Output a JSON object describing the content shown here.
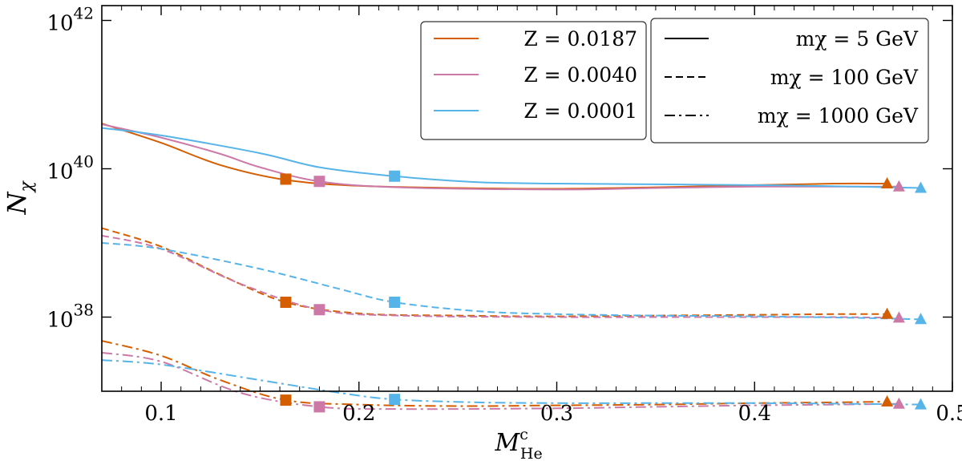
{
  "chart_data": {
    "type": "line",
    "title": "",
    "xlabel": {
      "main": "M",
      "sup": "c",
      "sub": "He"
    },
    "ylabel": {
      "main": "N",
      "sub": "χ"
    },
    "xlim": [
      0.07,
      0.5
    ],
    "ylim_log10": [
      37.0,
      42.2
    ],
    "y_scale": "log",
    "grid": false,
    "x_ticks": [
      {
        "value": 0.1,
        "label": "0.1"
      },
      {
        "value": 0.2,
        "label": "0.2"
      },
      {
        "value": 0.3,
        "label": "0.3"
      },
      {
        "value": 0.4,
        "label": "0.4"
      },
      {
        "value": 0.5,
        "label": "0.5"
      }
    ],
    "y_ticks": [
      {
        "exp": 38,
        "base": "10",
        "power": "38"
      },
      {
        "exp": 40,
        "base": "10",
        "power": "40"
      },
      {
        "exp": 42,
        "base": "10",
        "power": "42"
      }
    ],
    "legend_metallicity": {
      "placement": "top-center",
      "entries": [
        {
          "label": "Z = 0.0187",
          "color": "#d55e00"
        },
        {
          "label": "Z = 0.0040",
          "color": "#cc79a7"
        },
        {
          "label": "Z = 0.0001",
          "color": "#56b4e9"
        }
      ]
    },
    "legend_mass": {
      "placement": "top-right",
      "entries": [
        {
          "label": "mχ = 5 GeV",
          "style": "solid"
        },
        {
          "label": "mχ = 100 GeV",
          "style": "dashed"
        },
        {
          "label": "mχ = 1000 GeV",
          "style": "dashdot"
        }
      ]
    },
    "series": [
      {
        "name": "Z = 0.0187, mχ = 5 GeV",
        "color": "#d55e00",
        "style": "solid",
        "points": [
          [
            0.07,
            40.61
          ],
          [
            0.1,
            40.35
          ],
          [
            0.13,
            40.05
          ],
          [
            0.163,
            39.85
          ],
          [
            0.2,
            39.77
          ],
          [
            0.25,
            39.74
          ],
          [
            0.3,
            39.73
          ],
          [
            0.35,
            39.75
          ],
          [
            0.4,
            39.78
          ],
          [
            0.44,
            39.8
          ],
          [
            0.467,
            39.8
          ]
        ],
        "markers": [
          {
            "x": 0.163,
            "y": 39.86,
            "shape": "square"
          },
          {
            "x": 0.467,
            "y": 39.8,
            "shape": "triangle"
          }
        ]
      },
      {
        "name": "Z = 0.0040, mχ = 5 GeV",
        "color": "#cc79a7",
        "style": "solid",
        "points": [
          [
            0.07,
            40.6
          ],
          [
            0.1,
            40.42
          ],
          [
            0.13,
            40.2
          ],
          [
            0.15,
            40.02
          ],
          [
            0.18,
            39.83
          ],
          [
            0.22,
            39.75
          ],
          [
            0.3,
            39.72
          ],
          [
            0.35,
            39.74
          ],
          [
            0.4,
            39.76
          ],
          [
            0.44,
            39.76
          ],
          [
            0.473,
            39.76
          ]
        ],
        "markers": [
          {
            "x": 0.18,
            "y": 39.83,
            "shape": "square"
          },
          {
            "x": 0.473,
            "y": 39.76,
            "shape": "triangle"
          }
        ]
      },
      {
        "name": "Z = 0.0001, mχ = 5 GeV",
        "color": "#56b4e9",
        "style": "solid",
        "points": [
          [
            0.07,
            40.55
          ],
          [
            0.1,
            40.45
          ],
          [
            0.15,
            40.21
          ],
          [
            0.18,
            40.02
          ],
          [
            0.218,
            39.9
          ],
          [
            0.26,
            39.82
          ],
          [
            0.3,
            39.8
          ],
          [
            0.35,
            39.79
          ],
          [
            0.4,
            39.78
          ],
          [
            0.45,
            39.76
          ],
          [
            0.484,
            39.74
          ]
        ],
        "markers": [
          {
            "x": 0.218,
            "y": 39.9,
            "shape": "square"
          },
          {
            "x": 0.484,
            "y": 39.74,
            "shape": "triangle"
          }
        ]
      },
      {
        "name": "Z = 0.0187, mχ = 100 GeV",
        "color": "#d55e00",
        "style": "dashed",
        "points": [
          [
            0.07,
            39.2
          ],
          [
            0.1,
            38.95
          ],
          [
            0.13,
            38.57
          ],
          [
            0.163,
            38.2
          ],
          [
            0.2,
            38.05
          ],
          [
            0.25,
            38.02
          ],
          [
            0.3,
            38.01
          ],
          [
            0.35,
            38.02
          ],
          [
            0.4,
            38.03
          ],
          [
            0.44,
            38.04
          ],
          [
            0.467,
            38.04
          ]
        ],
        "markers": [
          {
            "x": 0.163,
            "y": 38.2,
            "shape": "square"
          },
          {
            "x": 0.467,
            "y": 38.04,
            "shape": "triangle"
          }
        ]
      },
      {
        "name": "Z = 0.0040, mχ = 100 GeV",
        "color": "#cc79a7",
        "style": "dashed",
        "points": [
          [
            0.07,
            39.1
          ],
          [
            0.1,
            38.92
          ],
          [
            0.14,
            38.45
          ],
          [
            0.18,
            38.1
          ],
          [
            0.22,
            38.02
          ],
          [
            0.3,
            38.0
          ],
          [
            0.35,
            38.0
          ],
          [
            0.4,
            38.0
          ],
          [
            0.44,
            38.0
          ],
          [
            0.473,
            37.99
          ]
        ],
        "markers": [
          {
            "x": 0.18,
            "y": 38.1,
            "shape": "square"
          },
          {
            "x": 0.473,
            "y": 37.99,
            "shape": "triangle"
          }
        ]
      },
      {
        "name": "Z = 0.0001, mχ = 100 GeV",
        "color": "#56b4e9",
        "style": "dashed",
        "points": [
          [
            0.07,
            39.0
          ],
          [
            0.1,
            38.92
          ],
          [
            0.15,
            38.65
          ],
          [
            0.19,
            38.38
          ],
          [
            0.218,
            38.2
          ],
          [
            0.26,
            38.08
          ],
          [
            0.3,
            38.04
          ],
          [
            0.35,
            38.02
          ],
          [
            0.4,
            38.01
          ],
          [
            0.45,
            37.99
          ],
          [
            0.484,
            37.97
          ]
        ],
        "markers": [
          {
            "x": 0.218,
            "y": 38.2,
            "shape": "square"
          },
          {
            "x": 0.484,
            "y": 37.97,
            "shape": "triangle"
          }
        ]
      },
      {
        "name": "Z = 0.0187, mχ = 1000 GeV",
        "color": "#d55e00",
        "style": "dashdot",
        "points": [
          [
            0.07,
            37.68
          ],
          [
            0.1,
            37.48
          ],
          [
            0.13,
            37.15
          ],
          [
            0.163,
            36.88
          ],
          [
            0.2,
            36.82
          ],
          [
            0.25,
            36.8
          ],
          [
            0.3,
            36.81
          ],
          [
            0.35,
            36.82
          ],
          [
            0.4,
            36.84
          ],
          [
            0.44,
            36.85
          ],
          [
            0.467,
            36.86
          ]
        ],
        "markers": [
          {
            "x": 0.163,
            "y": 36.88,
            "shape": "square"
          },
          {
            "x": 0.467,
            "y": 36.86,
            "shape": "triangle"
          }
        ]
      },
      {
        "name": "Z = 0.0040, mχ = 1000 GeV",
        "color": "#cc79a7",
        "style": "dashdot",
        "points": [
          [
            0.07,
            37.52
          ],
          [
            0.1,
            37.4
          ],
          [
            0.14,
            36.98
          ],
          [
            0.18,
            36.79
          ],
          [
            0.22,
            36.76
          ],
          [
            0.3,
            36.77
          ],
          [
            0.35,
            36.79
          ],
          [
            0.4,
            36.81
          ],
          [
            0.44,
            36.82
          ],
          [
            0.473,
            36.83
          ]
        ],
        "markers": [
          {
            "x": 0.18,
            "y": 36.79,
            "shape": "square"
          },
          {
            "x": 0.473,
            "y": 36.83,
            "shape": "triangle"
          }
        ]
      },
      {
        "name": "Z = 0.0001, mχ = 1000 GeV",
        "color": "#56b4e9",
        "style": "dashdot",
        "points": [
          [
            0.07,
            37.42
          ],
          [
            0.1,
            37.36
          ],
          [
            0.15,
            37.15
          ],
          [
            0.19,
            36.98
          ],
          [
            0.218,
            36.89
          ],
          [
            0.26,
            36.85
          ],
          [
            0.3,
            36.84
          ],
          [
            0.35,
            36.84
          ],
          [
            0.4,
            36.84
          ],
          [
            0.45,
            36.83
          ],
          [
            0.484,
            36.82
          ]
        ],
        "markers": [
          {
            "x": 0.218,
            "y": 36.89,
            "shape": "square"
          },
          {
            "x": 0.484,
            "y": 36.82,
            "shape": "triangle"
          }
        ]
      }
    ]
  }
}
